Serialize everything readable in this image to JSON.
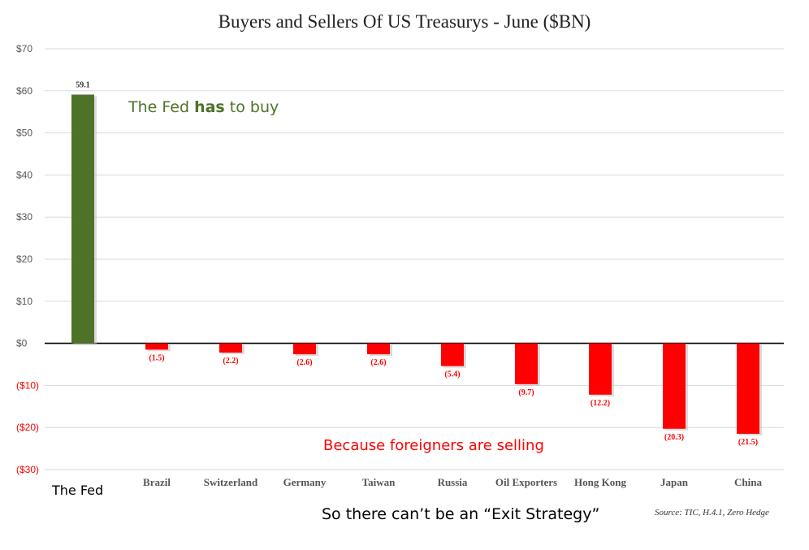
{
  "chart_data": {
    "type": "bar",
    "title": "Buyers and Sellers Of US Treasurys - June ($BN)",
    "categories": [
      "The Fed",
      "Brazil",
      "Switzerland",
      "Germany",
      "Taiwan",
      "Russia",
      "Oil Exporters",
      "Hong Kong",
      "Japan",
      "China"
    ],
    "values": [
      59.1,
      -1.5,
      -2.2,
      -2.6,
      -2.6,
      -5.4,
      -9.7,
      -12.2,
      -20.3,
      -21.5
    ],
    "data_labels": [
      "59.1",
      "(1.5)",
      "(2.2)",
      "(2.6)",
      "(2.6)",
      "(5.4)",
      "(9.7)",
      "(12.2)",
      "(20.3)",
      "(21.5)"
    ],
    "y_ticks": [
      70,
      60,
      50,
      40,
      30,
      20,
      10,
      0,
      -10,
      -20,
      -30
    ],
    "y_tick_labels": [
      "$70",
      "$60",
      "$50",
      "$40",
      "$30",
      "$20",
      "$10",
      "$0",
      "($10)",
      "($20)",
      "($30)"
    ],
    "ylim": [
      -30,
      70
    ],
    "grid": true,
    "xlabel": "",
    "ylabel": ""
  },
  "colors": {
    "buyer": "#4e7228",
    "seller": "#ff0000",
    "grid": "#d9d9d9",
    "negative_tick": "#ff0000",
    "positive_tick": "#555555"
  },
  "annotations": {
    "fed_buy_pre": "The Fed ",
    "fed_buy_bold": "has",
    "fed_buy_post": " to buy",
    "foreigners_selling": "Because foreigners are selling",
    "exit_strategy": "So there can’t be an “Exit Strategy”",
    "fed_category_label": "The Fed"
  },
  "source": "Source: TIC, H.4.1, Zero Hedge"
}
